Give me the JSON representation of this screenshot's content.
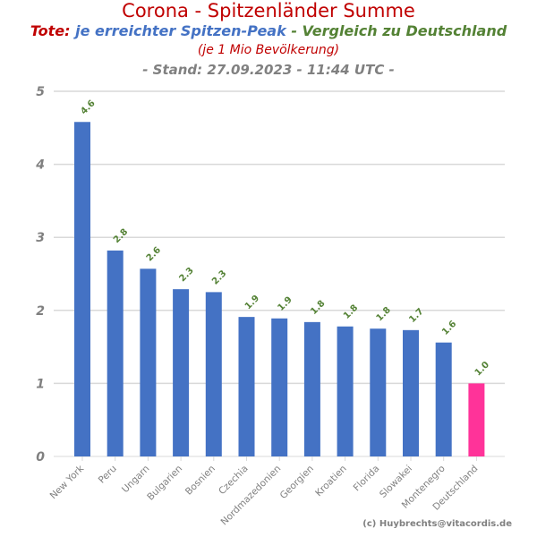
{
  "header": {
    "title": "Corona - Spitzenländer Summe",
    "sub_a": "Tote:",
    "sub_b": "je erreichter Spitzen-Peak",
    "sub_c": " - Vergleich zu Deutschland",
    "sub2": "(je 1 Mio Bevölkerung)",
    "stand": "- Stand: 27.09.2023 - 11:44 UTC -"
  },
  "copyright": "(c) Huybrechts@vitacordis.de",
  "colors": {
    "bar": "#4472c4",
    "highlight": "#ff3399",
    "label": "#548235",
    "red": "#c00000",
    "blue": "#4472c4",
    "green": "#548235"
  },
  "chart_data": {
    "type": "bar",
    "title": "Corona - Spitzenländer Summe",
    "categories": [
      "New York",
      "Peru",
      "Ungarn",
      "Bulgarien",
      "Bosnien",
      "Czechia",
      "Nordmazedonien",
      "Georgien",
      "Kroatien",
      "Florida",
      "Slowakei",
      "Montenegro",
      "Deutschland"
    ],
    "values": [
      4.58,
      2.82,
      2.57,
      2.29,
      2.25,
      1.91,
      1.89,
      1.84,
      1.78,
      1.75,
      1.73,
      1.56,
      1.0
    ],
    "data_labels": [
      "4.6",
      "2.8",
      "2.6",
      "2.3",
      "2.3",
      "1.9",
      "1.9",
      "1.8",
      "1.8",
      "1.8",
      "1.7",
      "1.6",
      "1.0"
    ],
    "highlight": "Deutschland",
    "ylim": [
      0,
      5
    ],
    "yticks": [
      "0",
      "1",
      "2",
      "3",
      "4",
      "5"
    ],
    "grid": true
  }
}
